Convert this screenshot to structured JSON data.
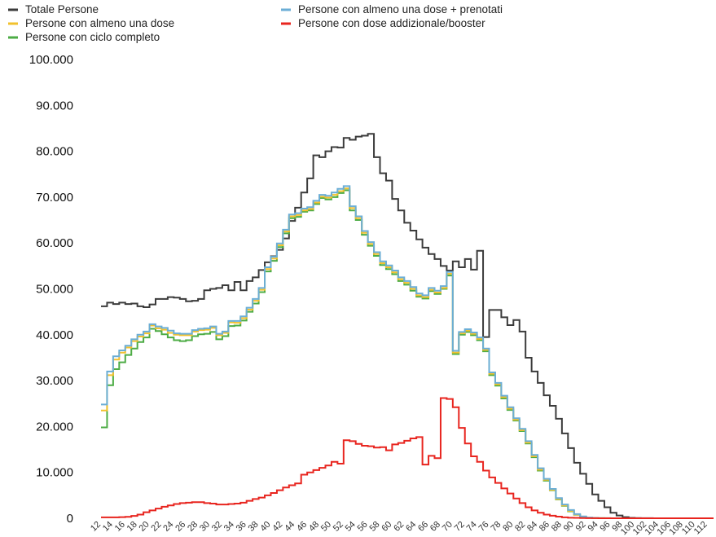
{
  "chart_data": {
    "type": "line",
    "step": true,
    "title": "",
    "xlabel": "",
    "ylabel": "",
    "ylim": [
      0,
      100000
    ],
    "xlim": [
      12,
      113
    ],
    "y_ticks": [
      0,
      10000,
      20000,
      30000,
      40000,
      50000,
      60000,
      70000,
      80000,
      90000,
      100000
    ],
    "y_tick_labels": [
      "0",
      "10.000",
      "20.000",
      "30.000",
      "40.000",
      "50.000",
      "60.000",
      "70.000",
      "80.000",
      "90.000",
      "100.000"
    ],
    "x_ticks": [
      12,
      14,
      16,
      18,
      20,
      22,
      24,
      26,
      28,
      30,
      32,
      34,
      36,
      38,
      40,
      42,
      44,
      46,
      48,
      50,
      52,
      54,
      56,
      58,
      60,
      62,
      64,
      66,
      68,
      70,
      72,
      74,
      76,
      78,
      80,
      82,
      84,
      86,
      88,
      90,
      92,
      94,
      96,
      98,
      100,
      102,
      104,
      106,
      108,
      110,
      112
    ],
    "x_tick_labels": [
      "12",
      "14",
      "16",
      "18",
      "20",
      "22",
      "24",
      "26",
      "28",
      "30",
      "32",
      "34",
      "36",
      "38",
      "40",
      "42",
      "44",
      "46",
      "48",
      "50",
      "52",
      "54",
      "56",
      "58",
      "60",
      "62",
      "64",
      "66",
      "68",
      "70",
      "72",
      "74",
      "76",
      "78",
      "80",
      "82",
      "84",
      "86",
      "88",
      "90",
      "92",
      "94",
      "96",
      "98",
      "100",
      "102",
      "104",
      "106",
      "108",
      "110",
      "112"
    ],
    "grid": false,
    "legend_position": "top-left",
    "x": [
      12,
      13,
      14,
      15,
      16,
      17,
      18,
      19,
      20,
      21,
      22,
      23,
      24,
      25,
      26,
      27,
      28,
      29,
      30,
      31,
      32,
      33,
      34,
      35,
      36,
      37,
      38,
      39,
      40,
      41,
      42,
      43,
      44,
      45,
      46,
      47,
      48,
      49,
      50,
      51,
      52,
      53,
      54,
      55,
      56,
      57,
      58,
      59,
      60,
      61,
      62,
      63,
      64,
      65,
      66,
      67,
      68,
      69,
      70,
      71,
      72,
      73,
      74,
      75,
      76,
      77,
      78,
      79,
      80,
      81,
      82,
      83,
      84,
      85,
      86,
      87,
      88,
      89,
      90,
      91,
      92,
      93,
      94,
      95,
      96,
      97,
      98,
      99,
      100,
      101,
      102,
      103,
      104,
      105,
      106,
      107,
      108,
      109,
      110,
      111,
      112
    ],
    "series": [
      {
        "name": "Totale Persone",
        "color": "#3b3b3b",
        "values": [
          46200,
          47000,
          46700,
          47000,
          46700,
          46800,
          46200,
          46000,
          46600,
          47800,
          47800,
          48200,
          48100,
          47800,
          47300,
          47400,
          47800,
          49700,
          50000,
          50200,
          50800,
          49700,
          51500,
          49700,
          51700,
          52500,
          54100,
          55800,
          57100,
          58500,
          61000,
          64800,
          67700,
          71000,
          74100,
          79100,
          78700,
          80000,
          80900,
          80800,
          82900,
          82500,
          83200,
          83400,
          83800,
          78700,
          75200,
          73600,
          69600,
          67100,
          64400,
          62700,
          60800,
          59000,
          57600,
          56500,
          55000,
          54000,
          56000,
          54700,
          56500,
          54200,
          58300,
          39500,
          45400,
          45400,
          43800,
          42100,
          43200,
          40700,
          35000,
          32000,
          29500,
          26800,
          24500,
          21700,
          18500,
          15300,
          12100,
          9700,
          7500,
          5200,
          3800,
          2400,
          1200,
          600,
          250,
          100,
          50,
          30,
          20,
          10,
          5,
          5,
          5,
          5,
          5,
          5,
          5,
          5,
          5
        ]
      },
      {
        "name": "Persone con almeno una dose + prenotati",
        "color": "#6baed6",
        "values": [
          24800,
          32000,
          35300,
          36600,
          37600,
          39000,
          40000,
          40700,
          42300,
          41800,
          41500,
          40900,
          40300,
          40200,
          40200,
          41000,
          41300,
          41400,
          41800,
          40200,
          40700,
          43000,
          43000,
          44000,
          45900,
          47800,
          50200,
          54700,
          57000,
          59900,
          62900,
          66200,
          66500,
          67500,
          67800,
          69200,
          70500,
          70300,
          71000,
          71800,
          72400,
          68000,
          65800,
          62600,
          60200,
          58000,
          56000,
          55100,
          54000,
          52500,
          51700,
          50400,
          49000,
          48600,
          50200,
          49600,
          50600,
          53700,
          36500,
          40600,
          41200,
          40500,
          39400,
          37000,
          31800,
          29500,
          26700,
          24200,
          21800,
          19500,
          16800,
          13800,
          10900,
          8600,
          6400,
          4400,
          3000,
          1800,
          900,
          400,
          150,
          60,
          30,
          20,
          10,
          5,
          5,
          5,
          5,
          5,
          5,
          5,
          5,
          5,
          5,
          5,
          5,
          5,
          5,
          5,
          5
        ]
      },
      {
        "name": "Persone con almeno una dose",
        "color": "#f2c12e",
        "values": [
          23500,
          31200,
          34600,
          36100,
          37200,
          38600,
          39600,
          40300,
          42000,
          41400,
          41100,
          40400,
          40000,
          39900,
          39900,
          40700,
          41000,
          41100,
          41500,
          39900,
          40400,
          42700,
          42600,
          43600,
          45500,
          47400,
          49800,
          54300,
          56600,
          59500,
          62500,
          65800,
          66100,
          67100,
          67400,
          68800,
          70100,
          69900,
          70500,
          71300,
          71900,
          67600,
          65400,
          62200,
          59800,
          57600,
          55600,
          54700,
          53600,
          52100,
          51300,
          50000,
          48600,
          48200,
          49800,
          49200,
          50200,
          53300,
          36100,
          40300,
          40900,
          40200,
          39100,
          36700,
          31500,
          29200,
          26400,
          23900,
          21500,
          19200,
          16500,
          13500,
          10600,
          8400,
          6200,
          4200,
          2800,
          1600,
          800,
          350,
          120,
          50,
          25,
          15,
          8,
          5,
          5,
          5,
          5,
          5,
          5,
          5,
          5,
          5,
          5,
          5,
          5,
          5,
          5,
          5,
          5
        ]
      },
      {
        "name": "Persone con ciclo completo",
        "color": "#4dac45",
        "values": [
          19800,
          29000,
          32500,
          34000,
          35600,
          37000,
          38400,
          39400,
          41300,
          40800,
          40100,
          39400,
          38800,
          38600,
          38800,
          39700,
          40100,
          40200,
          40600,
          39000,
          39700,
          41900,
          42000,
          43100,
          45000,
          46800,
          49300,
          53800,
          56100,
          59100,
          62100,
          65400,
          65700,
          66800,
          67100,
          68500,
          69800,
          69500,
          70000,
          70900,
          71500,
          67100,
          65000,
          61800,
          59400,
          57200,
          55200,
          54300,
          53200,
          51700,
          50900,
          49600,
          48300,
          47900,
          49500,
          48900,
          50000,
          52900,
          35800,
          40000,
          40600,
          39900,
          38800,
          36400,
          31200,
          28900,
          26100,
          23600,
          21300,
          19000,
          16300,
          13300,
          10400,
          8200,
          6100,
          4100,
          2700,
          1500,
          750,
          300,
          100,
          40,
          20,
          10,
          5,
          5,
          5,
          5,
          5,
          5,
          5,
          5,
          5,
          5,
          5,
          5,
          5,
          5,
          5,
          5,
          5
        ]
      },
      {
        "name": "Persone con dose addizionale/booster",
        "color": "#e8251f",
        "values": [
          200,
          200,
          200,
          250,
          300,
          500,
          800,
          1300,
          1700,
          2100,
          2500,
          2800,
          3100,
          3300,
          3400,
          3500,
          3500,
          3300,
          3200,
          3000,
          3000,
          3100,
          3200,
          3400,
          3800,
          4200,
          4500,
          5000,
          5500,
          6100,
          6700,
          7200,
          7600,
          9500,
          10000,
          10500,
          11000,
          11500,
          12300,
          11900,
          17000,
          16800,
          16200,
          15800,
          15700,
          15400,
          15500,
          14800,
          16100,
          16400,
          16900,
          17400,
          17700,
          11700,
          13600,
          13100,
          26200,
          26000,
          24200,
          19700,
          16300,
          13500,
          12300,
          10400,
          8900,
          7700,
          6500,
          5400,
          4300,
          3300,
          2400,
          1700,
          1200,
          800,
          550,
          350,
          200,
          120,
          80,
          50,
          30,
          20,
          10,
          5,
          5,
          5,
          5,
          5,
          5,
          5,
          5,
          5,
          5,
          5,
          5,
          5,
          5,
          5,
          5,
          5,
          5
        ]
      }
    ]
  }
}
